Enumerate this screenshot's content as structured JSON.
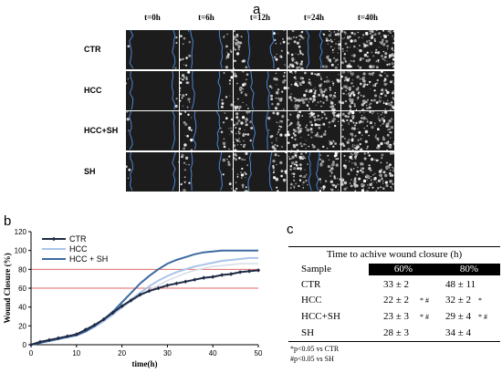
{
  "panel_a": {
    "letter": "a",
    "time_headers": [
      "t=0h",
      "t=6h",
      "t=12h",
      "t=24h",
      "t=40h"
    ],
    "rows": [
      "CTR",
      "HCC",
      "HCC+SH",
      "SH"
    ]
  },
  "panel_b": {
    "letter": "b"
  },
  "panel_c": {
    "letter": "c",
    "title": "Time to achive wound closure (h)",
    "sample_header": "Sample",
    "col_headers": [
      "60%",
      "80%"
    ],
    "rows": [
      {
        "sample": "CTR",
        "v60": "33 ± 2",
        "m60": "",
        "v80": "48 ± 11",
        "m80": ""
      },
      {
        "sample": "HCC",
        "v60": "22 ± 2",
        "m60": "* #",
        "v80": "32 ± 2",
        "m80": "*"
      },
      {
        "sample": "HCC+SH",
        "v60": "23 ± 3",
        "m60": "* #",
        "v80": "29 ± 4",
        "m80": "* #"
      },
      {
        "sample": "SH",
        "v60": "28 ± 3",
        "m60": "",
        "v80": "34 ± 4",
        "m80": ""
      }
    ],
    "footnotes": [
      "*p<0.05 vs CTR",
      "#p<0.05 vs SH"
    ]
  },
  "chart_data": {
    "type": "line",
    "title": "",
    "xlabel": "time(h)",
    "ylabel": "Wound Closure (%)",
    "xlim": [
      0,
      50
    ],
    "ylim": [
      0,
      120
    ],
    "xticks": [
      0,
      10,
      20,
      30,
      40,
      50
    ],
    "yticks": [
      0,
      20,
      40,
      60,
      80,
      100,
      120
    ],
    "legend_position": "top-left",
    "reference_lines": [
      {
        "y": 60,
        "color": "#e06666"
      },
      {
        "y": 80,
        "color": "#e06666"
      }
    ],
    "x": [
      0,
      2,
      4,
      6,
      8,
      10,
      12,
      14,
      16,
      18,
      20,
      22,
      24,
      26,
      28,
      30,
      32,
      34,
      36,
      38,
      40,
      42,
      44,
      46,
      48,
      50
    ],
    "series": [
      {
        "name": "CTR",
        "color": "#1f2a44",
        "marker": "diamond",
        "values": [
          0,
          3,
          5,
          7,
          9,
          11,
          16,
          21,
          27,
          34,
          41,
          47,
          53,
          57,
          60,
          63,
          65,
          67,
          69,
          71,
          72,
          74,
          75,
          77,
          78,
          79
        ]
      },
      {
        "name": "HCC",
        "color": "#a9c4e8",
        "marker": "none",
        "values": [
          0,
          2,
          4,
          6,
          8,
          10,
          14,
          19,
          25,
          32,
          40,
          48,
          55,
          62,
          68,
          73,
          77,
          80,
          83,
          85,
          87,
          89,
          90,
          91,
          92,
          92
        ]
      },
      {
        "name": "HCC + SH",
        "color": "#3b6aa0",
        "marker": "none",
        "values": [
          0,
          2,
          4,
          6,
          8,
          10,
          14,
          20,
          27,
          35,
          45,
          55,
          65,
          73,
          80,
          86,
          90,
          93,
          96,
          98,
          99,
          100,
          100,
          100,
          100,
          100
        ]
      },
      {
        "name": "",
        "color": "#d6dde8",
        "marker": "none",
        "values": [
          0,
          3,
          5,
          7,
          8,
          10,
          14,
          19,
          25,
          32,
          39,
          46,
          52,
          58,
          63,
          68,
          72,
          76,
          79,
          81,
          83,
          84,
          85,
          86,
          86,
          86
        ]
      }
    ]
  }
}
